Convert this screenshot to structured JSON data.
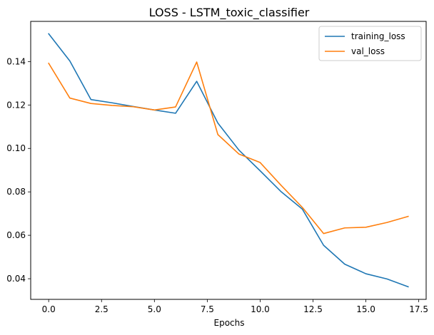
{
  "chart_data": {
    "type": "line",
    "title": "LOSS - LSTM_toxic_classifier",
    "xlabel": "Epochs",
    "ylabel": "",
    "xlim": [
      -0.85,
      17.85
    ],
    "ylim": [
      0.0305,
      0.1585
    ],
    "xticks": [
      0,
      2.5,
      5,
      7.5,
      10,
      12.5,
      15,
      17.5
    ],
    "xtick_labels": [
      "0.0",
      "2.5",
      "5.0",
      "7.5",
      "10.0",
      "12.5",
      "15.0",
      "17.5"
    ],
    "yticks": [
      0.04,
      0.06,
      0.08,
      0.1,
      0.12,
      0.14
    ],
    "ytick_labels": [
      "0.04",
      "0.06",
      "0.08",
      "0.10",
      "0.12",
      "0.14"
    ],
    "grid": false,
    "legend_position": "top-right",
    "x": [
      0,
      1,
      2,
      3,
      4,
      5,
      6,
      7,
      8,
      9,
      10,
      11,
      12,
      13,
      14,
      15,
      16,
      17
    ],
    "series": [
      {
        "name": "training_loss",
        "color": "#1f77b4",
        "values": [
          0.1528,
          0.1403,
          0.1225,
          0.121,
          0.1193,
          0.1177,
          0.1162,
          0.1309,
          0.1117,
          0.0992,
          0.0897,
          0.08,
          0.072,
          0.0554,
          0.0467,
          0.0423,
          0.0399,
          0.0363
        ]
      },
      {
        "name": "val_loss",
        "color": "#ff7f0e",
        "values": [
          0.1392,
          0.1232,
          0.1207,
          0.1198,
          0.1192,
          0.1177,
          0.1191,
          0.1398,
          0.1064,
          0.0974,
          0.0935,
          0.0829,
          0.0728,
          0.0608,
          0.0634,
          0.0637,
          0.0659,
          0.0687
        ]
      }
    ]
  }
}
